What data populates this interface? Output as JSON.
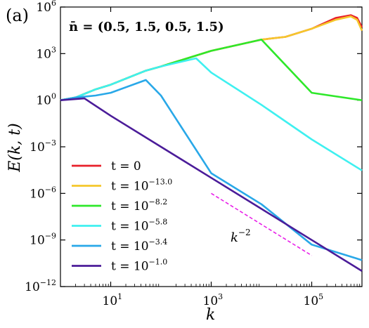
{
  "chart_data": {
    "type": "line",
    "panel_label": "(a)",
    "annotation": "n̄ = (0.5, 1.5, 0.5, 1.5)",
    "xlabel": "E(k, t)",
    "xlabel_note": "",
    "x_axis_label": "k",
    "y_axis_label": "E(k, t)",
    "xscale": "log",
    "yscale": "log",
    "xlim": [
      1,
      1000000
    ],
    "ylim": [
      1e-12,
      1000000
    ],
    "x_ticks": [
      {
        "value": 10,
        "base": "10",
        "exp": "1"
      },
      {
        "value": 1000,
        "base": "10",
        "exp": "3"
      },
      {
        "value": 100000,
        "base": "10",
        "exp": "5"
      }
    ],
    "y_ticks": [
      {
        "value": 1e-12,
        "base": "10",
        "exp": "−12"
      },
      {
        "value": 1e-09,
        "base": "10",
        "exp": "−9"
      },
      {
        "value": 1e-06,
        "base": "10",
        "exp": "−6"
      },
      {
        "value": 0.001,
        "base": "10",
        "exp": "−3"
      },
      {
        "value": 1,
        "base": "10",
        "exp": "0"
      },
      {
        "value": 1000,
        "base": "10",
        "exp": "3"
      },
      {
        "value": 1000000,
        "base": "10",
        "exp": "6"
      }
    ],
    "grid": false,
    "legend_position": "lower-left",
    "series": [
      {
        "name": "t = 0",
        "t_base": "t = 0",
        "t_exp": "",
        "color": "#e8202a",
        "points": [
          [
            1,
            1
          ],
          [
            2,
            1.5
          ],
          [
            5,
            5
          ],
          [
            10,
            10
          ],
          [
            50,
            80
          ],
          [
            100,
            150
          ],
          [
            1000,
            1500
          ],
          [
            10000,
            8000
          ],
          [
            30000,
            12000
          ],
          [
            100000,
            40000
          ],
          [
            300000,
            200000
          ],
          [
            600000,
            300000
          ],
          [
            800000,
            200000
          ],
          [
            1000000,
            50000
          ]
        ]
      },
      {
        "name": "t = 10^−13.0",
        "t_base": "t = 10",
        "t_exp": "−13.0",
        "color": "#f5c72b",
        "points": [
          [
            1,
            1
          ],
          [
            2,
            1.5
          ],
          [
            5,
            5
          ],
          [
            10,
            10
          ],
          [
            50,
            80
          ],
          [
            100,
            150
          ],
          [
            1000,
            1500
          ],
          [
            10000,
            8000
          ],
          [
            30000,
            12000
          ],
          [
            100000,
            40000
          ],
          [
            300000,
            150000
          ],
          [
            600000,
            250000
          ],
          [
            800000,
            150000
          ],
          [
            1000000,
            30000
          ]
        ]
      },
      {
        "name": "t = 10^−8.2",
        "t_base": "t = 10",
        "t_exp": "−8.2",
        "color": "#2ee82a",
        "points": [
          [
            1,
            1
          ],
          [
            2,
            1.5
          ],
          [
            5,
            5
          ],
          [
            10,
            10
          ],
          [
            50,
            80
          ],
          [
            100,
            150
          ],
          [
            1000,
            1500
          ],
          [
            10000,
            8000
          ],
          [
            100000,
            3
          ],
          [
            1000000,
            1
          ]
        ]
      },
      {
        "name": "t = 10^−5.8",
        "t_base": "t = 10",
        "t_exp": "−5.8",
        "color": "#3ff0f0",
        "points": [
          [
            1,
            1
          ],
          [
            2,
            1.5
          ],
          [
            5,
            5
          ],
          [
            10,
            10
          ],
          [
            50,
            80
          ],
          [
            100,
            150
          ],
          [
            500,
            500
          ],
          [
            1000,
            60
          ],
          [
            10000,
            0.5
          ],
          [
            100000,
            0.003
          ],
          [
            1000000,
            3e-05
          ]
        ]
      },
      {
        "name": "t = 10^−3.4",
        "t_base": "t = 10",
        "t_exp": "−3.4",
        "color": "#29a8e8",
        "points": [
          [
            1,
            1
          ],
          [
            2,
            1.5
          ],
          [
            5,
            2
          ],
          [
            10,
            3
          ],
          [
            50,
            20
          ],
          [
            100,
            2
          ],
          [
            1000,
            2e-05
          ],
          [
            10000,
            2e-07
          ],
          [
            100000,
            5e-10
          ],
          [
            1000000,
            5e-11
          ]
        ]
      },
      {
        "name": "t = 10^−1.0",
        "t_base": "t = 10",
        "t_exp": "−1.0",
        "color": "#4b1c99",
        "points": [
          [
            1,
            1
          ],
          [
            3,
            1.3
          ],
          [
            10,
            0.1
          ],
          [
            100,
            0.001
          ],
          [
            1000,
            1e-05
          ],
          [
            10000,
            1e-07
          ],
          [
            100000,
            1e-09
          ],
          [
            1000000,
            1e-11
          ]
        ]
      }
    ],
    "reference_line": {
      "label_base": "k",
      "label_exp": "−2",
      "color": "#e81ee8",
      "points": [
        [
          1000,
          1e-06
        ],
        [
          100000,
          1e-10
        ]
      ]
    }
  }
}
